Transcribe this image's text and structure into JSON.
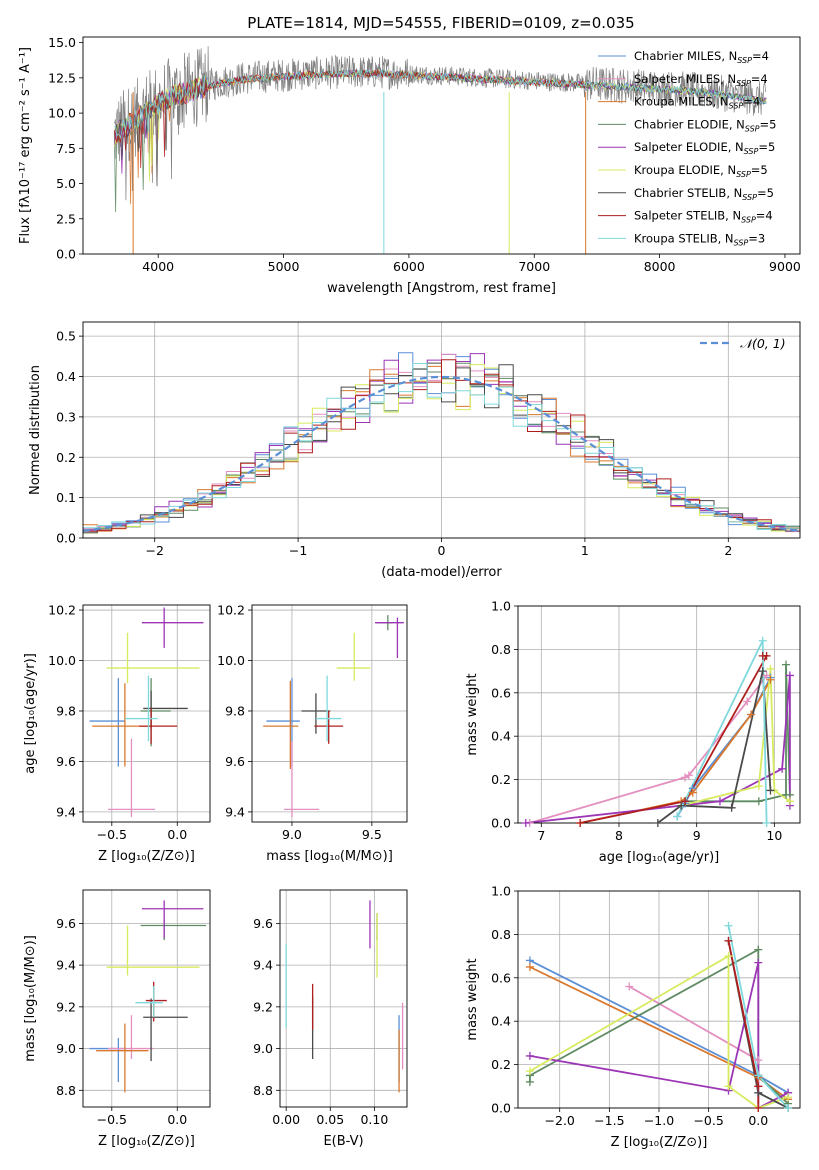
{
  "figure_title": "PLATE=1814, MJD=54555, FIBERID=0109, z=0.035",
  "colors": {
    "Chabrier MILES": "#5b8fd6",
    "Salpeter MILES": "#e38fc0",
    "Kroupa MILES": "#d9782d",
    "Chabrier ELODIE": "#5e8a62",
    "Salpeter ELODIE": "#9c35b6",
    "Kroupa ELODIE": "#d8ea5e",
    "Chabrier STELIB": "#4a4a4a",
    "Salpeter STELIB": "#b01e1e",
    "Kroupa STELIB": "#7fd8dc"
  },
  "chart_data": [
    {
      "id": "spectrum",
      "type": "line",
      "title": "PLATE=1814, MJD=54555, FIBERID=0109, z=0.035",
      "xlabel": "wavelength [Angstrom, rest frame]",
      "ylabel": "Flux [fλ10⁻¹⁷ erg cm⁻² s⁻¹ A⁻¹]",
      "xlim": [
        3400,
        9120
      ],
      "ylim": [
        0,
        15.4
      ],
      "xticks": [
        4000,
        5000,
        6000,
        7000,
        8000,
        9000
      ],
      "yticks": [
        0.0,
        2.5,
        5.0,
        7.5,
        10.0,
        12.5,
        15.0
      ],
      "grid": false,
      "legend_position": "top-right",
      "legend": [
        {
          "label": "Chabrier MILES, N",
          "sub": "SSP",
          "suffix": "=4",
          "color_key": "Chabrier MILES"
        },
        {
          "label": "Salpeter MILES, N",
          "sub": "SSP",
          "suffix": "=4",
          "color_key": "Salpeter MILES"
        },
        {
          "label": "Kroupa MILES, N",
          "sub": "SSP",
          "suffix": "=4",
          "color_key": "Kroupa MILES"
        },
        {
          "label": "Chabrier ELODIE, N",
          "sub": "SSP",
          "suffix": "=5",
          "color_key": "Chabrier ELODIE"
        },
        {
          "label": "Salpeter ELODIE, N",
          "sub": "SSP",
          "suffix": "=5",
          "color_key": "Salpeter ELODIE"
        },
        {
          "label": "Kroupa ELODIE, N",
          "sub": "SSP",
          "suffix": "=5",
          "color_key": "Kroupa ELODIE"
        },
        {
          "label": "Chabrier STELIB, N",
          "sub": "SSP",
          "suffix": "=5",
          "color_key": "Chabrier STELIB"
        },
        {
          "label": "Salpeter STELIB, N",
          "sub": "SSP",
          "suffix": "=4",
          "color_key": "Salpeter STELIB"
        },
        {
          "label": "Kroupa STELIB, N",
          "sub": "SSP",
          "suffix": "=3",
          "color_key": "Kroupa STELIB"
        }
      ],
      "observed_envelope": {
        "x": [
          3650,
          3800,
          3900,
          4000,
          4100,
          4300,
          4500,
          4700,
          5000,
          5200,
          5400,
          5600,
          5800,
          6000,
          6200,
          6400,
          6600,
          6800,
          7000,
          7200,
          7400,
          7600,
          7800,
          8000,
          8200,
          8400,
          8600,
          8800
        ],
        "y": [
          8.5,
          9.5,
          10.2,
          10.8,
          11.2,
          11.8,
          12.2,
          12.5,
          12.7,
          12.8,
          12.9,
          12.9,
          12.9,
          12.8,
          12.7,
          12.6,
          12.5,
          12.4,
          12.3,
          12.2,
          12.1,
          12.0,
          11.9,
          11.8,
          11.7,
          11.5,
          11.3,
          11.0
        ]
      }
    },
    {
      "id": "residuals",
      "type": "line",
      "xlabel": "(data-model)/error",
      "ylabel": "Normed distribution",
      "xlim": [
        -2.5,
        2.5
      ],
      "ylim": [
        0,
        0.535
      ],
      "xticks": [
        -2,
        -1,
        0,
        1,
        2
      ],
      "yticks": [
        0.0,
        0.1,
        0.2,
        0.3,
        0.4,
        0.5
      ],
      "grid": true,
      "legend_position": "top-right",
      "reference_curve_label": "𝒩(0, 1)",
      "reference_curve": "standard normal pdf",
      "hist_bin_width": 0.1
    },
    {
      "id": "age_vs_Z",
      "type": "scatter",
      "xlabel": "Z [log₁₀(Z/Z⊙)]",
      "ylabel": "age  [log₁₀(age/yr)]",
      "xlim": [
        -0.72,
        0.25
      ],
      "ylim": [
        9.36,
        10.22
      ],
      "xticks": [
        -0.5,
        0.0
      ],
      "yticks": [
        9.4,
        9.6,
        9.8,
        10.0,
        10.2
      ],
      "grid": true,
      "points": [
        {
          "model": "Chabrier MILES",
          "x": -0.45,
          "xerr": [
            0.22,
            0.05
          ],
          "y": 9.76,
          "yerr": [
            0.18,
            0.17
          ]
        },
        {
          "model": "Salpeter MILES",
          "x": -0.35,
          "xerr": [
            0.18,
            0.18
          ],
          "y": 9.41,
          "yerr": [
            0.03,
            0.28
          ]
        },
        {
          "model": "Kroupa MILES",
          "x": -0.4,
          "xerr": [
            0.25,
            0.2
          ],
          "y": 9.74,
          "yerr": [
            0.16,
            0.17
          ]
        },
        {
          "model": "Chabrier ELODIE",
          "x": -0.2,
          "xerr": [
            0.08,
            0.15
          ],
          "y": 9.8,
          "yerr": [
            0.14,
            0.13
          ]
        },
        {
          "model": "Salpeter ELODIE",
          "x": -0.1,
          "xerr": [
            0.17,
            0.3
          ],
          "y": 10.15,
          "yerr": [
            0.1,
            0.06
          ]
        },
        {
          "model": "Kroupa ELODIE",
          "x": -0.38,
          "xerr": [
            0.16,
            0.55
          ],
          "y": 9.97,
          "yerr": [
            0.06,
            0.14
          ]
        },
        {
          "model": "Chabrier STELIB",
          "x": -0.2,
          "xerr": [
            0.06,
            0.28
          ],
          "y": 9.81,
          "yerr": [
            0.08,
            0.07
          ]
        },
        {
          "model": "Salpeter STELIB",
          "x": -0.2,
          "xerr": [
            0.09,
            0.2
          ],
          "y": 9.74,
          "yerr": [
            0.07,
            0.07
          ]
        },
        {
          "model": "Kroupa STELIB",
          "x": -0.22,
          "xerr": [
            0.18,
            0.07
          ],
          "y": 9.77,
          "yerr": [
            0.09,
            0.17
          ]
        }
      ]
    },
    {
      "id": "age_vs_mass",
      "type": "scatter",
      "xlabel": "mass [log₁₀(M/M⊙)]",
      "ylabel": "",
      "xlim": [
        8.75,
        9.72
      ],
      "ylim": [
        9.36,
        10.22
      ],
      "xticks": [
        9.0,
        9.5
      ],
      "yticks": [
        9.4,
        9.6,
        9.8,
        10.0,
        10.2
      ],
      "grid": true,
      "points": [
        {
          "model": "Chabrier MILES",
          "x": 9.0,
          "xerr": [
            0.16,
            0.05
          ],
          "y": 9.76,
          "yerr": [
            0.18,
            0.17
          ]
        },
        {
          "model": "Salpeter MILES",
          "x": 9.0,
          "xerr": [
            0.05,
            0.17
          ],
          "y": 9.41,
          "yerr": [
            0.03,
            0.27
          ]
        },
        {
          "model": "Kroupa MILES",
          "x": 8.99,
          "xerr": [
            0.17,
            0.05
          ],
          "y": 9.74,
          "yerr": [
            0.17,
            0.18
          ]
        },
        {
          "model": "Chabrier ELODIE",
          "x": 9.6,
          "xerr": [
            0.07,
            0.03
          ],
          "y": 10.15,
          "yerr": [
            0.03,
            0.03
          ]
        },
        {
          "model": "Salpeter ELODIE",
          "x": 9.66,
          "xerr": [
            0.14,
            0.04
          ],
          "y": 10.15,
          "yerr": [
            0.14,
            0.02
          ]
        },
        {
          "model": "Kroupa ELODIE",
          "x": 9.39,
          "xerr": [
            0.11,
            0.1
          ],
          "y": 9.97,
          "yerr": [
            0.05,
            0.14
          ]
        },
        {
          "model": "Chabrier STELIB",
          "x": 9.15,
          "xerr": [
            0.09,
            0.09
          ],
          "y": 9.8,
          "yerr": [
            0.09,
            0.07
          ]
        },
        {
          "model": "Salpeter STELIB",
          "x": 9.23,
          "xerr": [
            0.09,
            0.09
          ],
          "y": 9.74,
          "yerr": [
            0.07,
            0.06
          ]
        },
        {
          "model": "Kroupa STELIB",
          "x": 9.22,
          "xerr": [
            0.07,
            0.09
          ],
          "y": 9.77,
          "yerr": [
            0.09,
            0.17
          ]
        }
      ]
    },
    {
      "id": "weight_vs_age",
      "type": "line",
      "xlabel": "age  [log₁₀(age/yr)]",
      "ylabel": "mass weight",
      "xlim": [
        6.7,
        10.33
      ],
      "ylim": [
        0,
        1
      ],
      "xticks": [
        7,
        8,
        9,
        10
      ],
      "yticks": [
        0.0,
        0.2,
        0.4,
        0.6,
        0.8,
        1.0
      ],
      "grid": true,
      "series": [
        {
          "model": "Chabrier MILES",
          "x": [
            8.75,
            8.85,
            8.95,
            9.7,
            9.95
          ],
          "y": [
            0.03,
            0.09,
            0.16,
            0.5,
            0.67
          ]
        },
        {
          "model": "Salpeter MILES",
          "x": [
            6.85,
            8.85,
            8.9,
            9.65,
            9.9
          ],
          "y": [
            0.0,
            0.21,
            0.22,
            0.56,
            0.68
          ]
        },
        {
          "model": "Kroupa MILES",
          "x": [
            7.5,
            8.8,
            8.95,
            9.7,
            9.95
          ],
          "y": [
            0.0,
            0.1,
            0.14,
            0.5,
            0.66
          ]
        },
        {
          "model": "Chabrier ELODIE",
          "x": [
            8.85,
            9.8,
            10.15,
            10.15,
            10.2
          ],
          "y": [
            0.1,
            0.1,
            0.13,
            0.73,
            0.13
          ]
        },
        {
          "model": "Salpeter ELODIE",
          "x": [
            6.8,
            9.3,
            10.1,
            10.2,
            10.2
          ],
          "y": [
            0.0,
            0.1,
            0.25,
            0.68,
            0.08
          ]
        },
        {
          "model": "Kroupa ELODIE",
          "x": [
            8.8,
            9.8,
            9.95,
            10.0,
            10.2
          ],
          "y": [
            0.08,
            0.17,
            0.71,
            0.15,
            0.1
          ]
        },
        {
          "model": "Chabrier STELIB",
          "x": [
            8.5,
            8.8,
            9.45,
            9.85,
            9.95
          ],
          "y": [
            0.0,
            0.08,
            0.07,
            0.7,
            0.15
          ]
        },
        {
          "model": "Salpeter STELIB",
          "x": [
            7.5,
            8.85,
            9.9,
            9.85
          ],
          "y": [
            0.0,
            0.1,
            0.77,
            0.77
          ]
        },
        {
          "model": "Kroupa STELIB",
          "x": [
            8.75,
            9.85,
            9.9
          ],
          "y": [
            0.03,
            0.84,
            0.0
          ]
        }
      ]
    },
    {
      "id": "mass_vs_Z",
      "type": "scatter",
      "xlabel": "Z [log₁₀(Z/Z⊙)]",
      "ylabel": "mass [log₁₀(M/M⊙)]",
      "xlim": [
        -0.72,
        0.25
      ],
      "ylim": [
        8.72,
        9.76
      ],
      "xticks": [
        -0.5,
        0.0
      ],
      "yticks": [
        8.8,
        9.0,
        9.2,
        9.4,
        9.6
      ],
      "grid": true,
      "points": [
        {
          "model": "Chabrier MILES",
          "x": -0.45,
          "xerr": [
            0.22,
            0.04
          ],
          "y": 9.0,
          "yerr": [
            0.16,
            0.05
          ]
        },
        {
          "model": "Salpeter MILES",
          "x": -0.35,
          "xerr": [
            0.18,
            0.17
          ],
          "y": 9.0,
          "yerr": [
            0.05,
            0.16
          ]
        },
        {
          "model": "Kroupa MILES",
          "x": -0.4,
          "xerr": [
            0.22,
            0.18
          ],
          "y": 8.99,
          "yerr": [
            0.2,
            0.13
          ]
        },
        {
          "model": "Chabrier ELODIE",
          "x": -0.1,
          "xerr": [
            0.18,
            0.32
          ],
          "y": 9.59,
          "yerr": [
            0.07,
            0.03
          ]
        },
        {
          "model": "Salpeter ELODIE",
          "x": -0.1,
          "xerr": [
            0.17,
            0.3
          ],
          "y": 9.67,
          "yerr": [
            0.14,
            0.04
          ]
        },
        {
          "model": "Kroupa ELODIE",
          "x": -0.38,
          "xerr": [
            0.16,
            0.55
          ],
          "y": 9.39,
          "yerr": [
            0.04,
            0.2
          ]
        },
        {
          "model": "Chabrier STELIB",
          "x": -0.2,
          "xerr": [
            0.06,
            0.28
          ],
          "y": 9.15,
          "yerr": [
            0.21,
            0.09
          ]
        },
        {
          "model": "Salpeter STELIB",
          "x": -0.18,
          "xerr": [
            0.06,
            0.1
          ],
          "y": 9.23,
          "yerr": [
            0.1,
            0.09
          ]
        },
        {
          "model": "Kroupa STELIB",
          "x": -0.18,
          "xerr": [
            0.14,
            0.07
          ],
          "y": 9.22,
          "yerr": [
            0.07,
            0.08
          ]
        }
      ]
    },
    {
      "id": "mass_vs_ebv",
      "type": "scatter",
      "xlabel": "E(B-V)",
      "ylabel": "",
      "xlim": [
        -0.007,
        0.137
      ],
      "ylim": [
        8.72,
        9.76
      ],
      "xticks": [
        0.0,
        0.05,
        0.1
      ],
      "xtick_labels": [
        "0.00",
        "0.05",
        "0.10"
      ],
      "yticks": [
        8.8,
        9.0,
        9.2,
        9.4,
        9.6
      ],
      "grid": true,
      "points": [
        {
          "model": "Chabrier MILES",
          "x": 0.128,
          "xerr": [
            0,
            0
          ],
          "y": 9.0,
          "yerr": [
            0.16,
            0.16
          ]
        },
        {
          "model": "Salpeter MILES",
          "x": 0.132,
          "xerr": [
            0,
            0
          ],
          "y": 9.0,
          "yerr": [
            0.1,
            0.22
          ]
        },
        {
          "model": "Kroupa MILES",
          "x": 0.128,
          "xerr": [
            0,
            0
          ],
          "y": 8.99,
          "yerr": [
            0.2,
            0.1
          ]
        },
        {
          "model": "Chabrier ELODIE",
          "x": 0.103,
          "xerr": [
            0,
            0
          ],
          "y": 9.59,
          "yerr": [
            0.07,
            0.06
          ]
        },
        {
          "model": "Salpeter ELODIE",
          "x": 0.095,
          "xerr": [
            0,
            0
          ],
          "y": 9.62,
          "yerr": [
            0.14,
            0.09
          ]
        },
        {
          "model": "Kroupa ELODIE",
          "x": 0.103,
          "xerr": [
            0,
            0
          ],
          "y": 9.5,
          "yerr": [
            0.16,
            0.15
          ]
        },
        {
          "model": "Chabrier STELIB",
          "x": 0.03,
          "xerr": [
            0,
            0
          ],
          "y": 9.15,
          "yerr": [
            0.2,
            0.1
          ]
        },
        {
          "model": "Salpeter STELIB",
          "x": 0.03,
          "xerr": [
            0,
            0
          ],
          "y": 9.19,
          "yerr": [
            0.1,
            0.12
          ]
        },
        {
          "model": "Kroupa STELIB",
          "x": 0.0,
          "xerr": [
            0,
            0
          ],
          "y": 9.2,
          "yerr": [
            0.1,
            0.3
          ]
        }
      ]
    },
    {
      "id": "weight_vs_Z",
      "type": "line",
      "xlabel": "Z [log₁₀(Z/Z⊙)]",
      "ylabel": "mass weight",
      "xlim": [
        -2.42,
        0.42
      ],
      "ylim": [
        0,
        1
      ],
      "xticks": [
        -2.0,
        -1.5,
        -1.0,
        -0.5,
        0.0
      ],
      "xtick_labels": [
        "−2.0",
        "−1.5",
        "−1.0",
        "−0.5",
        "0.0"
      ],
      "yticks": [
        0.0,
        0.2,
        0.4,
        0.6,
        0.8,
        1.0
      ],
      "grid": true,
      "series": [
        {
          "model": "Chabrier MILES",
          "x": [
            -2.3,
            0.0,
            0.3
          ],
          "y": [
            0.68,
            0.15,
            0.07
          ]
        },
        {
          "model": "Salpeter MILES",
          "x": [
            -1.3,
            0.0,
            0.0
          ],
          "y": [
            0.56,
            0.22,
            0.1
          ]
        },
        {
          "model": "Kroupa MILES",
          "x": [
            -2.3,
            0.0,
            0.3
          ],
          "y": [
            0.65,
            0.14,
            0.04
          ]
        },
        {
          "model": "Chabrier ELODIE",
          "x": [
            -2.3,
            -2.3,
            0.0,
            0.0,
            0.3
          ],
          "y": [
            0.12,
            0.15,
            0.73,
            0.15,
            0.02
          ]
        },
        {
          "model": "Salpeter ELODIE",
          "x": [
            -2.3,
            -0.3,
            0.0,
            0.0,
            0.3
          ],
          "y": [
            0.24,
            0.08,
            0.67,
            0.0,
            0.07
          ]
        },
        {
          "model": "Kroupa ELODIE",
          "x": [
            -2.3,
            -0.3,
            -0.3,
            0.0,
            0.3
          ],
          "y": [
            0.17,
            0.7,
            0.1,
            0.0,
            0.05
          ]
        },
        {
          "model": "Chabrier STELIB",
          "x": [
            -0.3,
            0.0,
            0.3
          ],
          "y": [
            0.77,
            0.07,
            0.0
          ]
        },
        {
          "model": "Salpeter STELIB",
          "x": [
            -0.3,
            0.0,
            0.0
          ],
          "y": [
            0.77,
            0.1,
            0.0
          ]
        },
        {
          "model": "Kroupa STELIB",
          "x": [
            -0.3,
            0.0,
            0.3
          ],
          "y": [
            0.84,
            0.15,
            0.0
          ]
        }
      ]
    }
  ]
}
